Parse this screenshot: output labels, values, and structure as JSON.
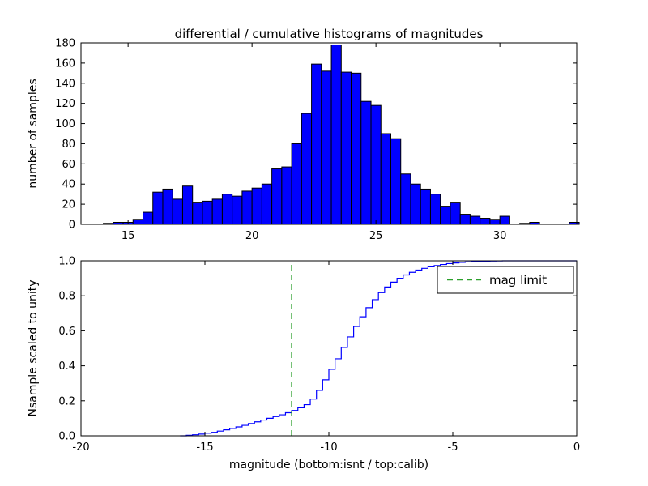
{
  "figure": {
    "background_color": "#ffffff",
    "frame_color": "#000000"
  },
  "chart_data": [
    {
      "type": "bar",
      "title": "differential / cumulative histograms of magnitudes",
      "xlabel": "",
      "ylabel": "number of samples",
      "xlim": [
        13.1,
        33.1
      ],
      "ylim": [
        0,
        180
      ],
      "xticks": [
        15,
        20,
        25,
        30
      ],
      "xtick_labels": [
        "15",
        "20",
        "25",
        "30"
      ],
      "yticks": [
        0,
        20,
        40,
        60,
        80,
        100,
        120,
        140,
        160,
        180
      ],
      "ytick_labels": [
        "0",
        "20",
        "40",
        "60",
        "80",
        "100",
        "120",
        "140",
        "160",
        "180"
      ],
      "bin_start": 14.0,
      "bin_width": 0.4,
      "values": [
        1,
        2,
        2,
        5,
        12,
        32,
        35,
        25,
        38,
        22,
        23,
        25,
        30,
        28,
        33,
        36,
        40,
        55,
        57,
        80,
        110,
        159,
        152,
        178,
        151,
        150,
        122,
        118,
        90,
        85,
        50,
        40,
        35,
        30,
        18,
        22,
        10,
        8,
        6,
        5,
        8,
        0,
        1,
        2,
        0,
        0,
        0,
        2
      ],
      "bar_color": "#0000ff",
      "bar_edge_color": "#000000",
      "grid": false
    },
    {
      "type": "line",
      "style": "step",
      "title": "",
      "xlabel": "magnitude (bottom:isnt / top:calib)",
      "ylabel": "Nsample scaled to unity",
      "xlim": [
        -20,
        0
      ],
      "ylim": [
        0.0,
        1.0
      ],
      "xticks": [
        -20,
        -15,
        -10,
        -5,
        0
      ],
      "xtick_labels": [
        "-20",
        "-15",
        "-10",
        "-5",
        "0"
      ],
      "yticks": [
        0.0,
        0.2,
        0.4,
        0.6,
        0.8,
        1.0
      ],
      "ytick_labels": [
        "0.0",
        "0.2",
        "0.4",
        "0.6",
        "0.8",
        "1.0"
      ],
      "x": [
        -16,
        -15.75,
        -15.5,
        -15.25,
        -15,
        -14.75,
        -14.5,
        -14.25,
        -14,
        -13.75,
        -13.5,
        -13.25,
        -13,
        -12.75,
        -12.5,
        -12.25,
        -12,
        -11.75,
        -11.5,
        -11.25,
        -11,
        -10.75,
        -10.5,
        -10.25,
        -10,
        -9.75,
        -9.5,
        -9.25,
        -9,
        -8.75,
        -8.5,
        -8.25,
        -8,
        -7.75,
        -7.5,
        -7.25,
        -7,
        -6.75,
        -6.5,
        -6.25,
        -6,
        -5.75,
        -5.5,
        -5.25,
        -5,
        -4.75,
        -4.5,
        -4.25,
        -4,
        -3.75,
        -3.5,
        -3.25,
        -3,
        0
      ],
      "y": [
        0,
        0.003,
        0.006,
        0.01,
        0.015,
        0.02,
        0.027,
        0.034,
        0.042,
        0.051,
        0.06,
        0.07,
        0.08,
        0.09,
        0.1,
        0.11,
        0.12,
        0.132,
        0.145,
        0.16,
        0.178,
        0.21,
        0.26,
        0.32,
        0.38,
        0.44,
        0.505,
        0.565,
        0.625,
        0.68,
        0.732,
        0.778,
        0.818,
        0.85,
        0.878,
        0.9,
        0.919,
        0.934,
        0.947,
        0.957,
        0.966,
        0.973,
        0.979,
        0.984,
        0.988,
        0.991,
        0.9935,
        0.9955,
        0.997,
        0.998,
        0.999,
        0.9995,
        1.0,
        1.0
      ],
      "line_color": "#0000ff",
      "mag_limit": {
        "x": -11.5,
        "color": "#2ca02c",
        "dashed": true
      },
      "legend": {
        "label": "mag limit",
        "position": "upper right"
      },
      "grid": false
    }
  ]
}
